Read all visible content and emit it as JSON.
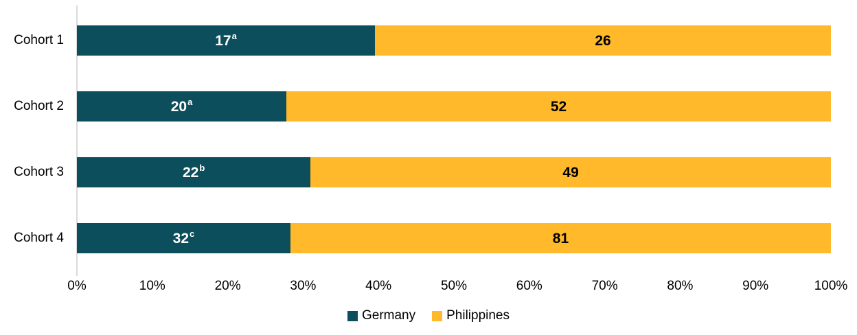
{
  "chart_data": {
    "type": "bar",
    "subtype": "horizontal-100%-stacked",
    "title": "",
    "categories": [
      "Cohort 1",
      "Cohort 2",
      "Cohort 3",
      "Cohort 4"
    ],
    "series": [
      {
        "name": "Germany",
        "color": "#0d4e5c",
        "label_color": "#ffffff",
        "values": [
          17,
          20,
          22,
          32
        ],
        "superscripts": [
          "a",
          "a",
          "b",
          "c"
        ]
      },
      {
        "name": "Philippines",
        "color": "#ffb92a",
        "label_color": "#000000",
        "values": [
          26,
          52,
          49,
          81
        ],
        "superscripts": [
          "",
          "",
          "",
          ""
        ]
      }
    ],
    "segment_percents": {
      "Germany": [
        39.5,
        27.8,
        31.0,
        28.3
      ],
      "Philippines": [
        60.5,
        72.2,
        69.0,
        71.7
      ]
    },
    "x_axis": {
      "min": 0,
      "max": 100,
      "unit": "percent",
      "tick_labels": [
        "0%",
        "10%",
        "20%",
        "30%",
        "40%",
        "50%",
        "60%",
        "70%",
        "80%",
        "90%",
        "100%"
      ]
    },
    "legend": {
      "position": "bottom",
      "entries": [
        "Germany",
        "Philippines"
      ]
    },
    "grid": "off",
    "axis_line_color": "#d9d9d9",
    "background": "#ffffff"
  }
}
